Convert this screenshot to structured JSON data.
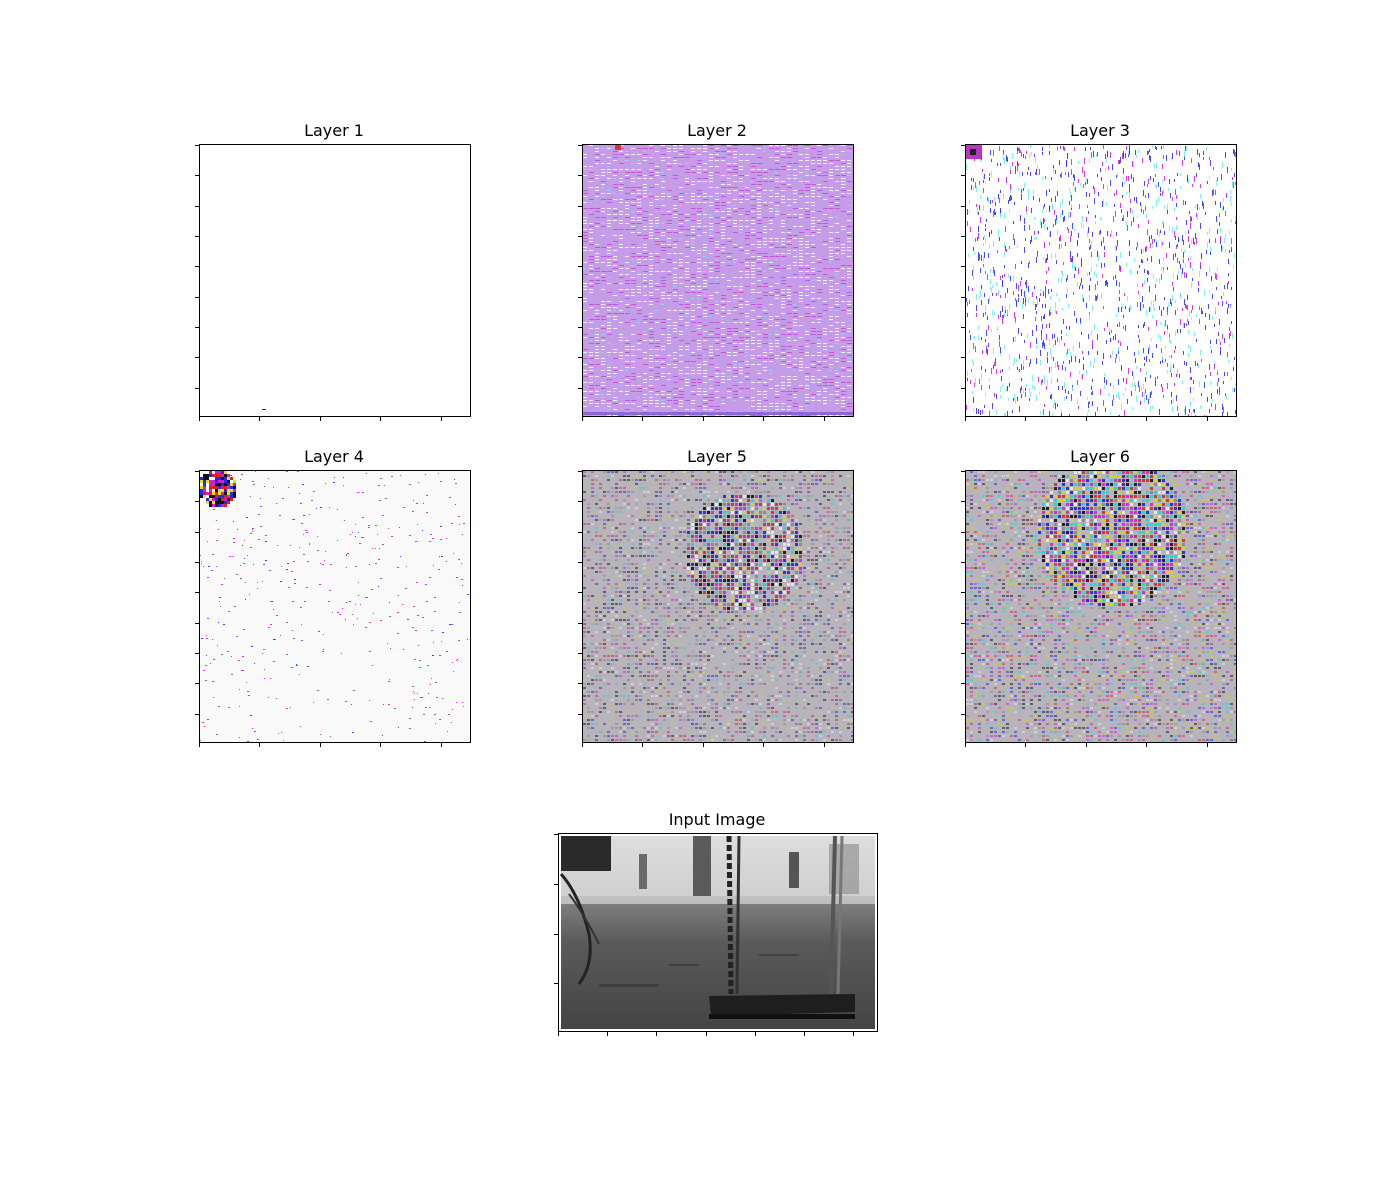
{
  "figure": {
    "panels": [
      {
        "title": "Layer 1"
      },
      {
        "title": "Layer 2"
      },
      {
        "title": "Layer 3"
      },
      {
        "title": "Layer 4"
      },
      {
        "title": "Layer 5"
      },
      {
        "title": "Layer 6"
      },
      {
        "title": "Input Image"
      }
    ]
  },
  "colors": {
    "axis": "#000000",
    "layer2_base": "#c49ce8",
    "layer3_base": "#ffffff",
    "layer4_base": "#fafafa",
    "layer56_base": "#b8b4bc",
    "magenta": "#d61fd6",
    "blue": "#2c2cf0",
    "cyan": "#6ef0f0"
  }
}
